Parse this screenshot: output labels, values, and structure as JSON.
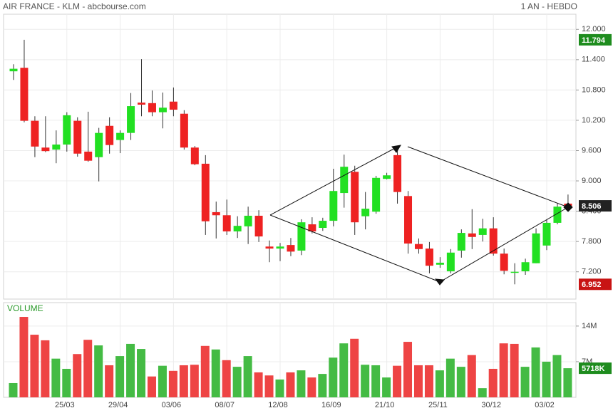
{
  "chart_data": {
    "type": "candlestick",
    "title": "AIR FRANCE - KLM - abcbourse.com",
    "subtitle": "1 AN - HEBDO",
    "categories": [
      null,
      null,
      null,
      null,
      null,
      "25/03",
      null,
      null,
      null,
      null,
      "29/04",
      null,
      null,
      null,
      null,
      "03/06",
      null,
      null,
      null,
      null,
      "08/07",
      null,
      null,
      null,
      null,
      "12/08",
      null,
      null,
      null,
      null,
      "16/09",
      null,
      null,
      null,
      null,
      "21/10",
      null,
      null,
      null,
      null,
      "25/11",
      null,
      null,
      null,
      null,
      "30/12",
      null,
      null,
      null,
      null,
      "03/02",
      null,
      null
    ],
    "open": [
      11.17,
      11.24,
      10.19,
      9.66,
      9.62,
      9.72,
      10.19,
      9.58,
      9.47,
      10.09,
      9.81,
      9.95,
      10.55,
      10.54,
      10.36,
      10.57,
      10.33,
      9.66,
      9.34,
      8.38,
      8.32,
      8.0,
      8.1,
      8.31,
      7.7,
      7.66,
      7.73,
      7.62,
      8.14,
      8.07,
      8.21,
      8.76,
      9.18,
      8.3,
      8.39,
      9.04,
      9.51,
      8.7,
      7.75,
      7.66,
      7.34,
      7.21,
      7.62,
      7.96,
      7.93,
      8.06,
      7.56,
      7.18,
      7.21,
      7.37,
      7.72,
      8.17,
      8.55
    ],
    "high": [
      11.31,
      11.794,
      10.28,
      10.28,
      10.0,
      10.36,
      10.26,
      10.37,
      10.05,
      10.26,
      10.0,
      10.74,
      11.41,
      10.79,
      10.75,
      10.85,
      10.4,
      9.69,
      9.51,
      8.59,
      8.63,
      8.3,
      8.49,
      8.42,
      7.82,
      7.77,
      7.87,
      8.24,
      8.28,
      8.27,
      9.24,
      9.52,
      9.3,
      8.78,
      9.1,
      9.16,
      9.62,
      8.8,
      7.86,
      7.79,
      7.49,
      7.65,
      8.04,
      8.44,
      8.25,
      8.28,
      7.66,
      7.37,
      7.46,
      8.06,
      8.23,
      8.55,
      8.73
    ],
    "low": [
      11.0,
      10.16,
      9.47,
      9.57,
      9.35,
      9.58,
      9.48,
      9.38,
      8.99,
      9.54,
      9.55,
      9.81,
      10.28,
      10.28,
      10.04,
      10.28,
      9.62,
      9.31,
      7.93,
      7.86,
      7.93,
      7.87,
      7.75,
      7.79,
      7.39,
      7.41,
      7.51,
      7.53,
      7.96,
      8.01,
      8.1,
      8.47,
      7.93,
      8.04,
      8.35,
      9.03,
      8.55,
      7.56,
      7.56,
      7.17,
      7.28,
      7.17,
      7.48,
      7.65,
      7.8,
      7.52,
      7.15,
      6.952,
      7.14,
      7.37,
      7.63,
      8.14,
      8.45
    ],
    "close": [
      11.22,
      10.19,
      9.68,
      9.59,
      9.72,
      10.3,
      9.54,
      9.4,
      9.95,
      9.71,
      9.95,
      10.48,
      10.51,
      10.36,
      10.45,
      10.41,
      9.66,
      9.33,
      8.2,
      8.32,
      8.0,
      8.11,
      8.31,
      7.9,
      7.66,
      7.7,
      7.6,
      8.18,
      8.0,
      8.21,
      8.8,
      9.28,
      8.18,
      8.45,
      9.06,
      9.11,
      8.78,
      7.76,
      7.65,
      7.32,
      7.38,
      7.58,
      7.97,
      7.89,
      8.06,
      7.56,
      7.22,
      7.2,
      7.39,
      7.96,
      8.17,
      8.49,
      8.506
    ],
    "up_color": "#22e022",
    "down_color": "#ee2222",
    "ylim": [
      6.66,
      12.3
    ],
    "yticks": [
      {
        "value": 12,
        "label": "12.000"
      },
      {
        "value": 11.4,
        "label": "11.400"
      },
      {
        "value": 10.8,
        "label": "10.800"
      },
      {
        "value": 10.2,
        "label": "10.200"
      },
      {
        "value": 9.6,
        "label": "9.600"
      },
      {
        "value": 9,
        "label": "9.000"
      },
      {
        "value": 8.4,
        "label": "8.400"
      },
      {
        "value": 7.8,
        "label": "7.800"
      },
      {
        "value": 7.2,
        "label": "7.200"
      }
    ],
    "grid": true,
    "markers": [
      {
        "value": 11.794,
        "label": "11.794",
        "color": "#1e8c1e"
      },
      {
        "value": 8.506,
        "label": "8.506",
        "color": "#222222"
      },
      {
        "value": 6.952,
        "label": "6.952",
        "color": "#c81414"
      }
    ],
    "volume": {
      "title": "VOLUME",
      "values": [
        2.8,
        15.8,
        12.3,
        11.2,
        7.6,
        5.6,
        8.5,
        11.3,
        10.2,
        6.3,
        8.1,
        10.5,
        9.5,
        4.1,
        6.2,
        5.2,
        6.3,
        6.4,
        10.1,
        9.4,
        7.3,
        6.0,
        8.1,
        4.9,
        4.3,
        3.5,
        4.9,
        5.3,
        3.9,
        4.6,
        7.8,
        10.6,
        11.5,
        6.4,
        6.3,
        3.9,
        6.2,
        10.9,
        6.3,
        6.3,
        5.3,
        7.6,
        6.0,
        8.3,
        1.8,
        5.6,
        10.6,
        10.5,
        6.0,
        9.8,
        7.0,
        8.3,
        5.718
      ],
      "up_color": "#44bb44",
      "down_color": "#ee4444",
      "ylim": [
        0,
        18.6
      ],
      "yticks": [
        {
          "value": 14,
          "label": "14M"
        },
        {
          "value": 7,
          "label": "7M"
        }
      ],
      "marker": {
        "value": 5.718,
        "label": "5718K",
        "color": "#1e8c1e"
      }
    }
  }
}
